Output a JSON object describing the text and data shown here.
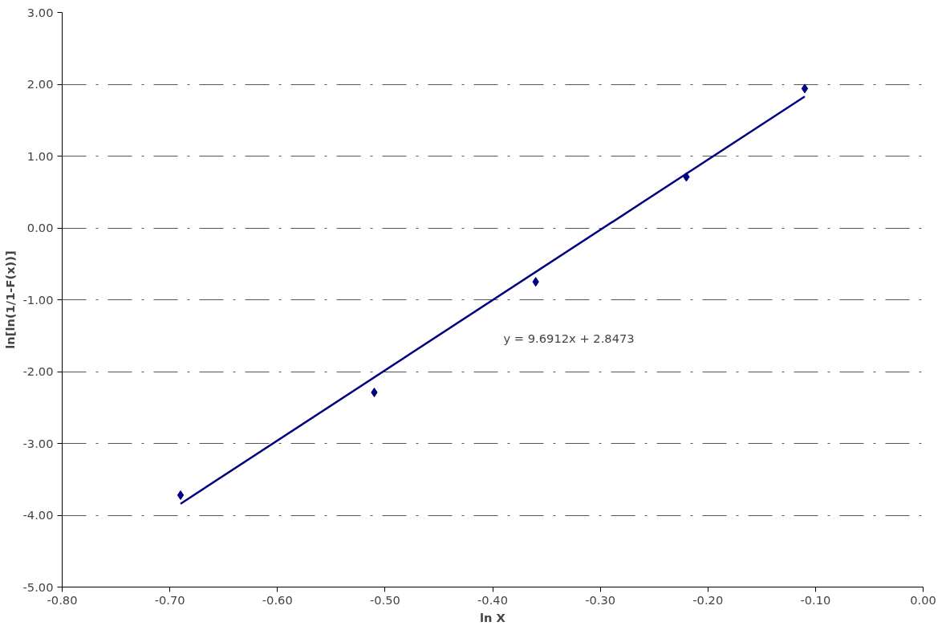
{
  "chart_data": {
    "type": "scatter",
    "xlabel": "ln X",
    "ylabel": "ln[ln(1/1-F(x))]",
    "series": [
      {
        "color": "#000080",
        "marker": "diamond",
        "x": [
          -0.69,
          -0.51,
          -0.36,
          -0.22,
          -0.11
        ],
        "values": [
          -3.72,
          -2.29,
          -0.75,
          0.71,
          1.94
        ]
      },
      {
        "type": "line",
        "color": "#000080",
        "line_style": "solid",
        "x": [
          -0.69,
          -0.11
        ],
        "values": [
          -3.84,
          1.83
        ]
      }
    ],
    "annotations": [
      "y = 9.6912x + 2.8473"
    ],
    "xlim": [
      -0.8,
      0.0
    ],
    "xticks": [
      {
        "value": -0.8,
        "label": "-0.80"
      },
      {
        "value": -0.7,
        "label": "-0.70"
      },
      {
        "value": -0.6,
        "label": "-0.60"
      },
      {
        "value": -0.5,
        "label": "-0.50"
      },
      {
        "value": -0.4,
        "label": "-0.40"
      },
      {
        "value": -0.3,
        "label": "-0.30"
      },
      {
        "value": -0.2,
        "label": "-0.20"
      },
      {
        "value": -0.1,
        "label": "-0.10"
      },
      {
        "value": 0.0,
        "label": "0.00"
      }
    ],
    "ylim": [
      -5.0,
      3.0
    ],
    "yticks": [
      {
        "value": -5,
        "label": "-5.00"
      },
      {
        "value": -4,
        "label": "-4.00"
      },
      {
        "value": -3,
        "label": "-3.00"
      },
      {
        "value": -2,
        "label": "-2.00"
      },
      {
        "value": -1,
        "label": "-1.00"
      },
      {
        "value": 0,
        "label": "0.00"
      },
      {
        "value": 1,
        "label": "1.00"
      },
      {
        "value": 2,
        "label": "2.00"
      },
      {
        "value": 3,
        "label": "3.00"
      }
    ],
    "grid": "y"
  }
}
